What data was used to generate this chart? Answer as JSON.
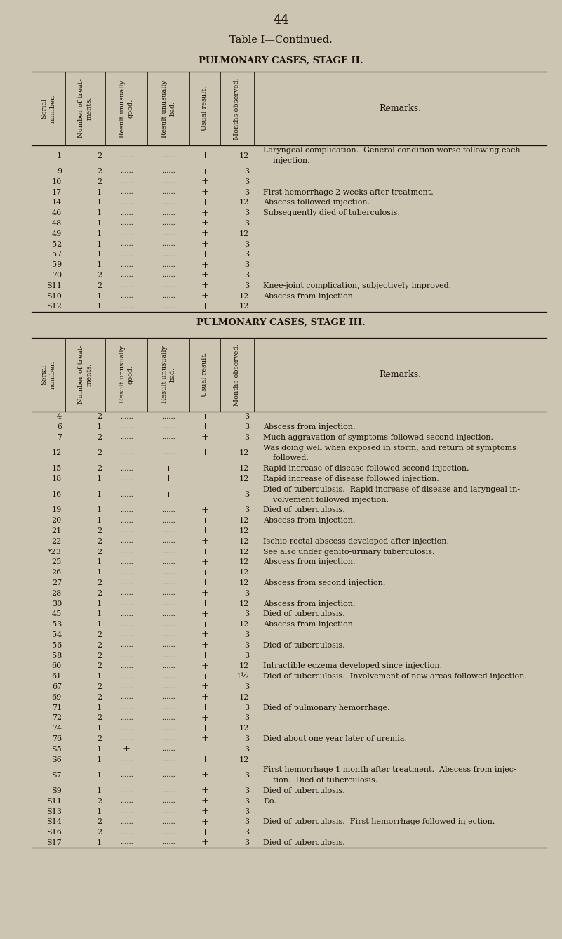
{
  "page_number": "44",
  "title": "Table I—Continued.",
  "subtitle1": "PULMONARY CASES, STAGE II.",
  "subtitle2": "PULMONARY CASES, STAGE III.",
  "bg_color": "#cbc5b2",
  "text_color": "#1a1008",
  "col_headers": [
    "Serial\nnumber.",
    "Number of treat-\nments.",
    "Result unusually\ngood.",
    "Result unusually\nbad.",
    "Usual result.",
    "Months observed.",
    "Remarks."
  ],
  "stage2_rows": [
    [
      "1",
      "2",
      "",
      "",
      "+",
      "12",
      "Laryngeal complication.  General condition worse following each\n    injection."
    ],
    [
      "9",
      "2",
      "",
      "",
      "+",
      "3",
      ""
    ],
    [
      "10",
      "2",
      "",
      "",
      "+",
      "3",
      ""
    ],
    [
      "17",
      "1",
      "",
      "",
      "+",
      "3",
      "First hemorrhage 2 weeks after treatment."
    ],
    [
      "14",
      "1",
      "",
      "",
      "+",
      "12",
      "Abscess followed injection."
    ],
    [
      "46",
      "1",
      "",
      "",
      "+",
      "3",
      "Subsequently died of tuberculosis."
    ],
    [
      "48",
      "1",
      "",
      "",
      "+",
      "3",
      ""
    ],
    [
      "49",
      "1",
      "",
      "",
      "+",
      "12",
      ""
    ],
    [
      "52",
      "1",
      "",
      "",
      "+",
      "3",
      ""
    ],
    [
      "57",
      "1",
      "",
      "",
      "+",
      "3",
      ""
    ],
    [
      "59",
      "1",
      "",
      "",
      "+",
      "3",
      ""
    ],
    [
      "70",
      "2",
      "",
      "",
      "+",
      "3",
      ""
    ],
    [
      "S11",
      "2",
      "",
      "",
      "+",
      "3",
      "Knee-joint complication, subjectively improved."
    ],
    [
      "S10",
      "1",
      "",
      "",
      "+",
      "12",
      "Abscess from injection."
    ],
    [
      "S12",
      "1",
      "",
      "",
      "+",
      "12",
      ""
    ]
  ],
  "stage3_rows": [
    [
      "4",
      "2",
      "",
      "",
      "+",
      "3",
      ""
    ],
    [
      "6",
      "1",
      "",
      "",
      "+",
      "3",
      "Abscess from injection."
    ],
    [
      "7",
      "2",
      "",
      "",
      "+",
      "3",
      "Much aggravation of symptoms followed second injection."
    ],
    [
      "12",
      "2",
      "",
      "",
      "+",
      "12",
      "Was doing well when exposed in storm, and return of symptoms\n    followed."
    ],
    [
      "15",
      "2",
      "",
      "+",
      "",
      "12",
      "Rapid increase of disease followed second injection."
    ],
    [
      "18",
      "1",
      "",
      "+",
      "",
      "12",
      "Rapid increase of disease followed injection."
    ],
    [
      "16",
      "1",
      "",
      "+",
      "",
      "3",
      "Died of tuberculosis.  Rapid increase of disease and laryngeal in-\n    volvement followed injection."
    ],
    [
      "19",
      "1",
      "",
      "",
      "+",
      "3",
      "Died of tuberculosis."
    ],
    [
      "20",
      "1",
      "",
      "",
      "+",
      "12",
      "Abscess from injection."
    ],
    [
      "21",
      "2",
      "",
      "",
      "+",
      "12",
      ""
    ],
    [
      "22",
      "2",
      "",
      "",
      "+",
      "12",
      "Ischio-rectal abscess developed after injection."
    ],
    [
      "*23",
      "2",
      "",
      "",
      "+",
      "12",
      "See also under genito-urinary tuberculosis."
    ],
    [
      "25",
      "1",
      "",
      "",
      "+",
      "12",
      "Abscess from injection."
    ],
    [
      "26",
      "1",
      "",
      "",
      "+",
      "12",
      ""
    ],
    [
      "27",
      "2",
      "",
      "",
      "+",
      "12",
      "Abscess from second injection."
    ],
    [
      "28",
      "2",
      "",
      "",
      "+",
      "3",
      ""
    ],
    [
      "30",
      "1",
      "",
      "",
      "+",
      "12",
      "Abscess from injection."
    ],
    [
      "45",
      "1",
      "",
      "",
      "+",
      "3",
      "Died of tuberculosis."
    ],
    [
      "53",
      "1",
      "",
      "",
      "+",
      "12",
      "Abscess from injection."
    ],
    [
      "54",
      "2",
      "",
      "",
      "+",
      "3",
      ""
    ],
    [
      "56",
      "2",
      "",
      "",
      "+",
      "3",
      "Died of tuberculosis."
    ],
    [
      "58",
      "2",
      "",
      "",
      "+",
      "3",
      ""
    ],
    [
      "60",
      "2",
      "",
      "",
      "+",
      "12",
      "Intractible eczema developed since injection."
    ],
    [
      "61",
      "1",
      "",
      "",
      "+",
      "1½",
      "Died of tuberculosis.  Involvement of new areas followed injection."
    ],
    [
      "67",
      "2",
      "",
      "",
      "+",
      "3",
      ""
    ],
    [
      "69",
      "2",
      "",
      "",
      "+",
      "12",
      ""
    ],
    [
      "71",
      "1",
      "",
      "",
      "+",
      "3",
      "Died of pulmonary hemorrhage."
    ],
    [
      "72",
      "2",
      "",
      "",
      "+",
      "3",
      ""
    ],
    [
      "74",
      "1",
      "",
      "",
      "+",
      "12",
      ""
    ],
    [
      "76",
      "2",
      "",
      "",
      "+",
      "3",
      "Died about one year later of uremia."
    ],
    [
      "S5",
      "1",
      "+",
      "",
      "",
      "3",
      ""
    ],
    [
      "S6",
      "1",
      "",
      "",
      "+",
      "12",
      ""
    ],
    [
      "S7",
      "1",
      "",
      "",
      "+",
      "3",
      "First hemorrhage 1 month after treatment.  Abscess from injec-\n    tion.  Died of tuberculosis."
    ],
    [
      "S9",
      "1",
      "",
      "",
      "+",
      "3",
      "Died of tuberculosis."
    ],
    [
      "S11",
      "2",
      "",
      "",
      "+",
      "3",
      "Do."
    ],
    [
      "S13",
      "1",
      "",
      "",
      "+",
      "3",
      ""
    ],
    [
      "S14",
      "2",
      "",
      "",
      "+",
      "3",
      "Died of tuberculosis.  First hemorrhage followed injection."
    ],
    [
      "S16",
      "2",
      "",
      "",
      "+",
      "3",
      ""
    ],
    [
      "S17",
      "1",
      "",
      "",
      "+",
      "3",
      "Died of tuberculosis."
    ]
  ]
}
